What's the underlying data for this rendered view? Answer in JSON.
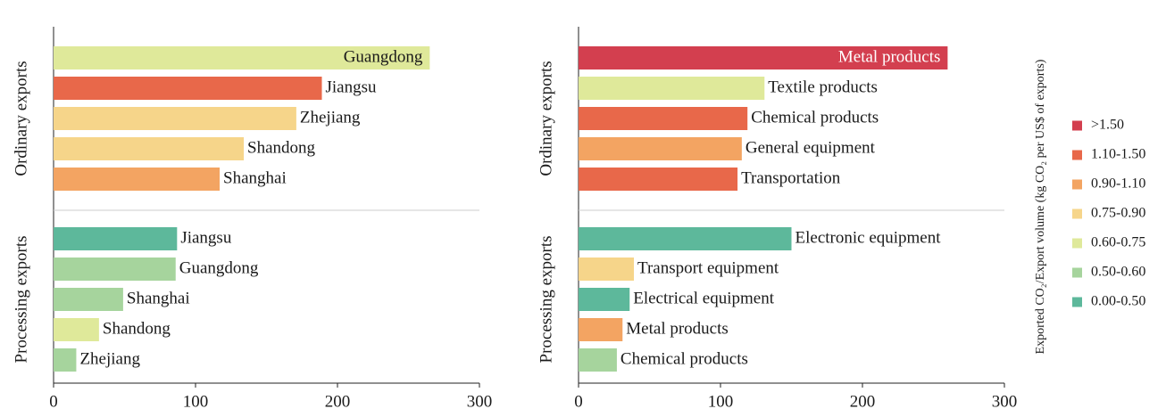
{
  "chart_data": [
    {
      "type": "bar",
      "orientation": "horizontal",
      "xlim": [
        0,
        300
      ],
      "xticks": [
        0,
        100,
        200,
        300
      ],
      "groups": [
        {
          "name": "Ordinary exports",
          "categories": [
            "Guangdong",
            "Jiangsu",
            "Zhejiang",
            "Shandong",
            "Shanghai"
          ],
          "values": [
            265,
            189,
            171,
            134,
            117
          ],
          "colors": [
            "#dfe99a",
            "#e8684a",
            "#f6d58a",
            "#f6d58a",
            "#f3a462"
          ]
        },
        {
          "name": "Processing exports",
          "categories": [
            "Jiangsu",
            "Guangdong",
            "Shanghai",
            "Shandong",
            "Zhejiang"
          ],
          "values": [
            87,
            86,
            49,
            32,
            16
          ],
          "colors": [
            "#5db89b",
            "#a6d49d",
            "#a6d49d",
            "#dfe99a",
            "#a6d49d"
          ]
        }
      ]
    },
    {
      "type": "bar",
      "orientation": "horizontal",
      "xlim": [
        0,
        300
      ],
      "xticks": [
        0,
        100,
        200,
        300
      ],
      "groups": [
        {
          "name": "Ordinary exports",
          "categories": [
            "Metal products",
            "Textile products",
            "Chemical products",
            "General equipment",
            "Transportation"
          ],
          "values": [
            260,
            131,
            119,
            115,
            112
          ],
          "colors": [
            "#d33f4f",
            "#dfe99a",
            "#e8684a",
            "#f3a462",
            "#e8684a"
          ]
        },
        {
          "name": "Processing exports",
          "categories": [
            "Electronic equipment",
            "Transport equipment",
            "Electrical equipment",
            "Metal products",
            "Chemical products"
          ],
          "values": [
            150,
            39,
            36,
            31,
            27
          ],
          "colors": [
            "#5db89b",
            "#f6d58a",
            "#5db89b",
            "#f3a462",
            "#a6d49d"
          ]
        }
      ]
    }
  ],
  "legend": {
    "title": "Exported CO₂/Export volume (kg CO₂ per US$ of exports)",
    "items": [
      {
        "label": ">1.50",
        "color": "#d33f4f"
      },
      {
        "label": "1.10-1.50",
        "color": "#e8684a"
      },
      {
        "label": "0.90-1.10",
        "color": "#f3a462"
      },
      {
        "label": "0.75-0.90",
        "color": "#f6d58a"
      },
      {
        "label": "0.60-0.75",
        "color": "#dfe99a"
      },
      {
        "label": "0.50-0.60",
        "color": "#a6d49d"
      },
      {
        "label": "0.00-0.50",
        "color": "#5db89b"
      }
    ]
  }
}
